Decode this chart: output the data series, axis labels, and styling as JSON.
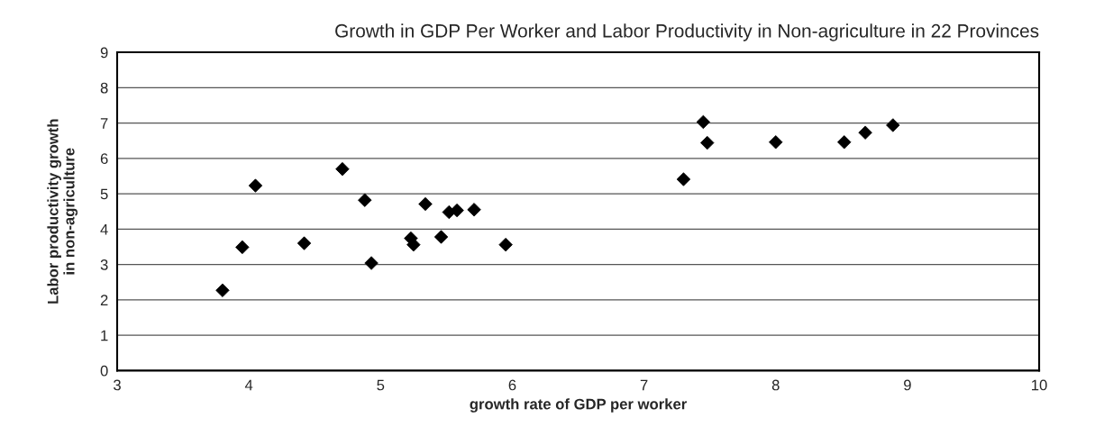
{
  "chart_data": {
    "type": "scatter",
    "title": "Growth in GDP Per Worker and Labor Productivity in Non-agriculture in 22 Provinces",
    "xlabel": "growth rate of GDP per worker",
    "ylabel": "Labor productivity growth\nin non-agriculture",
    "x": [
      3.8,
      3.95,
      4.05,
      4.42,
      4.71,
      4.88,
      4.93,
      5.23,
      5.25,
      5.34,
      5.46,
      5.52,
      5.58,
      5.71,
      5.95,
      7.3,
      7.45,
      7.48,
      8.0,
      8.52,
      8.68,
      8.89
    ],
    "series": [
      {
        "color": "#000000",
        "values": [
          2.27,
          3.49,
          5.23,
          3.6,
          5.7,
          4.82,
          3.04,
          3.74,
          3.56,
          4.71,
          3.78,
          4.48,
          4.53,
          4.55,
          3.56,
          5.41,
          7.03,
          6.44,
          6.46,
          6.46,
          6.73,
          6.94
        ]
      }
    ],
    "xlim": [
      3,
      10
    ],
    "xticks": [
      3,
      4,
      5,
      6,
      7,
      8,
      9,
      10
    ],
    "ylim": [
      0,
      9
    ],
    "yticks": [
      0,
      1,
      2,
      3,
      4,
      5,
      6,
      7,
      8,
      9
    ],
    "grid": "y",
    "marker": "diamond",
    "legend": false
  }
}
